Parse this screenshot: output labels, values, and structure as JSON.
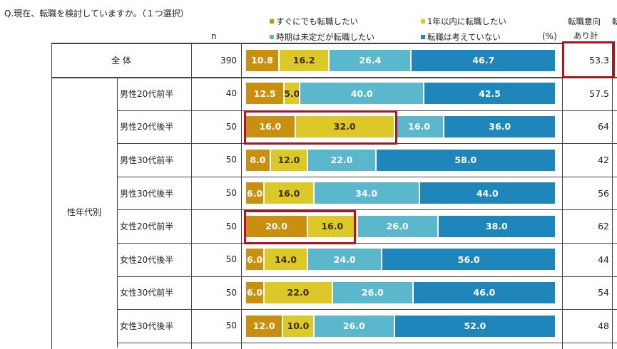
{
  "question": "Q.現在、転職を検討していますか。（１つ選択）",
  "n_header": "n",
  "unit": "(%)",
  "total_header_line1": "転職意向",
  "total_header_line2": "あり計",
  "extra_header": "転",
  "group_label": "性年代別",
  "colors": {
    "c1": "#c8900e",
    "c2": "#dcc826",
    "c3": "#5bb8cc",
    "c4": "#1f86bb",
    "highlight": "#b0141e"
  },
  "chart_data": {
    "type": "bar",
    "stacked": true,
    "orientation": "horizontal",
    "series": [
      {
        "name": "すぐにでも転職したい"
      },
      {
        "name": "1年以内に転職したい"
      },
      {
        "name": "時期は未定だが転職したい"
      },
      {
        "name": "転職は考えていない"
      }
    ],
    "rows": [
      {
        "label": "全 体",
        "n": "390",
        "values": [
          "10.8",
          "16.2",
          "26.4",
          "46.7"
        ],
        "total": "53.3"
      },
      {
        "label": "男性20代前半",
        "n": "40",
        "values": [
          "12.5",
          "5.0",
          "40.0",
          "42.5"
        ],
        "total": "57.5"
      },
      {
        "label": "男性20代後半",
        "n": "50",
        "values": [
          "16.0",
          "32.0",
          "16.0",
          "36.0"
        ],
        "total": "64"
      },
      {
        "label": "男性30代前半",
        "n": "50",
        "values": [
          "8.0",
          "12.0",
          "22.0",
          "58.0"
        ],
        "total": "42"
      },
      {
        "label": "男性30代後半",
        "n": "50",
        "values": [
          "6.0",
          "16.0",
          "34.0",
          "44.0"
        ],
        "total": "56"
      },
      {
        "label": "女性20代前半",
        "n": "50",
        "values": [
          "20.0",
          "16.0",
          "26.0",
          "38.0"
        ],
        "total": "62"
      },
      {
        "label": "女性20代後半",
        "n": "50",
        "values": [
          "6.0",
          "14.0",
          "24.0",
          "56.0"
        ],
        "total": "44"
      },
      {
        "label": "女性30代前半",
        "n": "50",
        "values": [
          "6.0",
          "22.0",
          "26.0",
          "46.0"
        ],
        "total": "54"
      },
      {
        "label": "女性30代後半",
        "n": "50",
        "values": [
          "12.0",
          "10.0",
          "26.0",
          "52.0"
        ],
        "total": "48"
      }
    ],
    "xlim": [
      0,
      100
    ]
  }
}
